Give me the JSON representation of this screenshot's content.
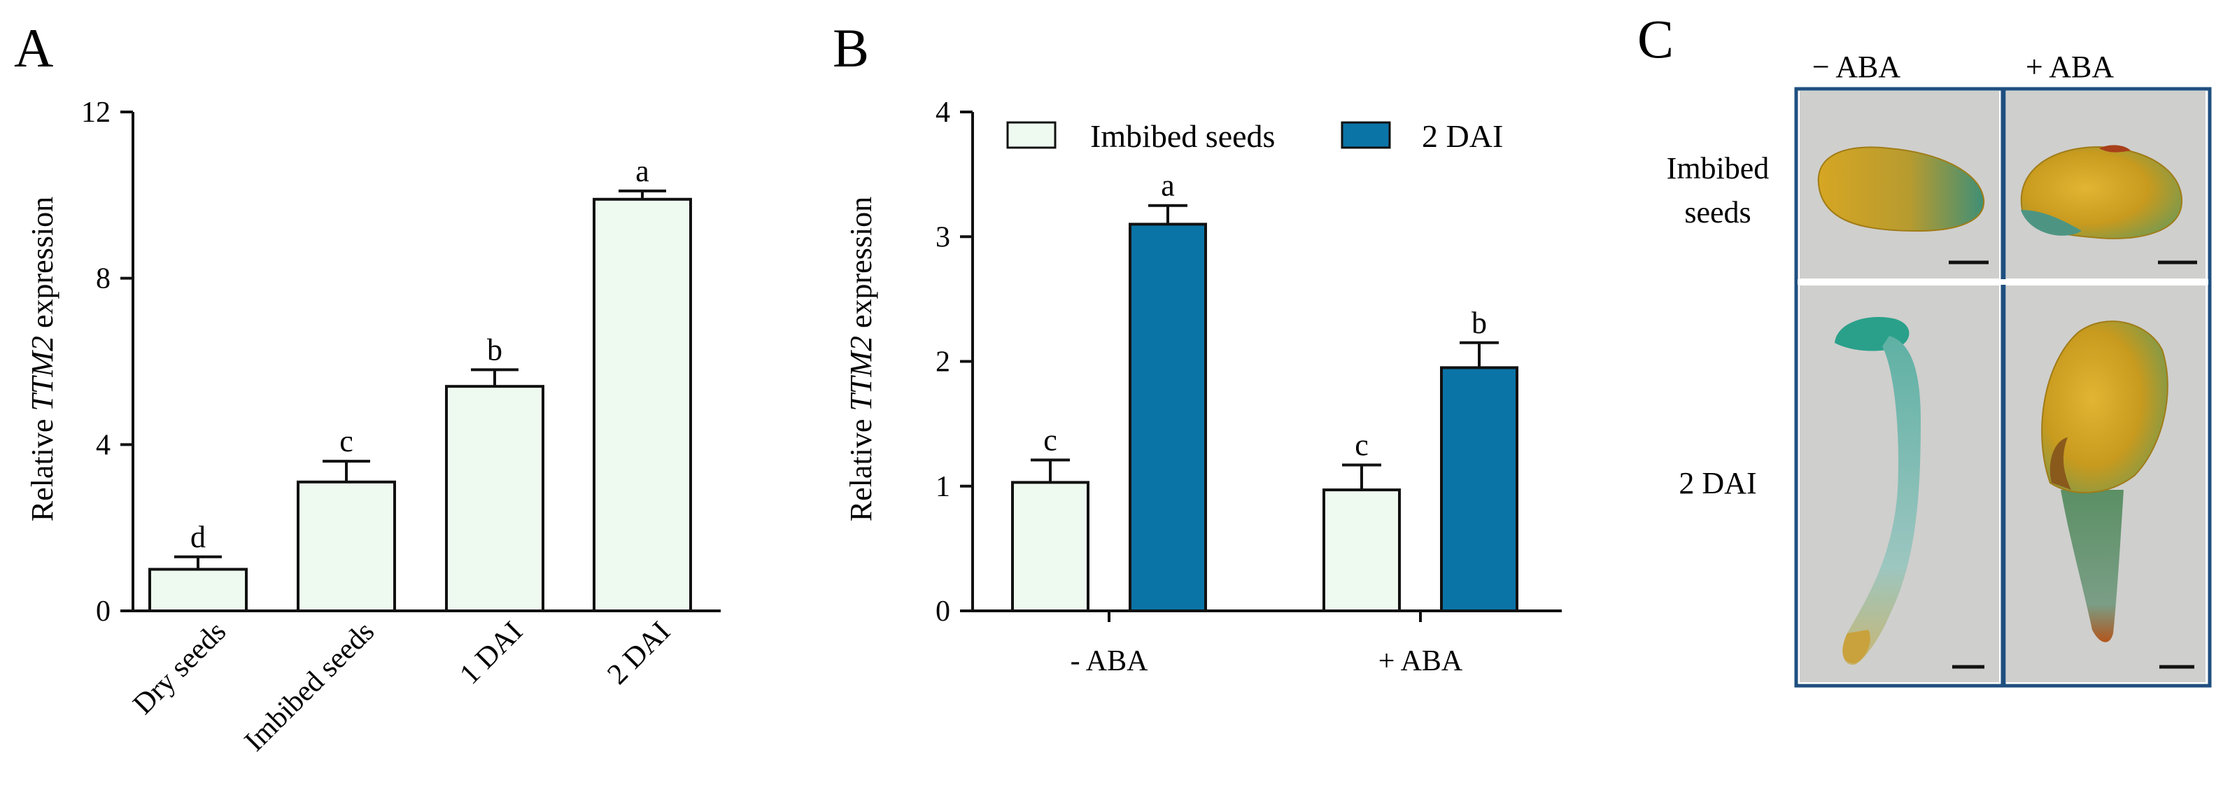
{
  "colors": {
    "light_bar": "#eefaf0",
    "dark_bar": "#0b74a6",
    "photo_border": "#1f4f7f",
    "photo_bg": "#cfcfcd",
    "seed_yellow": "#d8a524",
    "blue_stain": "#3fa393"
  },
  "chart_data": [
    {
      "panel": "A",
      "type": "bar",
      "categories": [
        "Dry seeds",
        "Imbibed seeds",
        "1 DAI",
        "2 DAI"
      ],
      "values": [
        1.0,
        3.1,
        5.4,
        9.9
      ],
      "errors": [
        0.3,
        0.5,
        0.4,
        0.2
      ],
      "significance": [
        "d",
        "c",
        "b",
        "a"
      ],
      "ylabel_prefix": "Relative ",
      "ylabel_gene": "TTM2",
      "ylabel_suffix": " expression",
      "yticks": [
        "0",
        "4",
        "8",
        "12"
      ],
      "ylim": [
        0,
        12
      ],
      "xlabel": ""
    },
    {
      "panel": "B",
      "type": "bar",
      "groups": [
        "- ABA",
        "+ ABA"
      ],
      "series": [
        {
          "name": "Imbibed seeds",
          "values": [
            1.03,
            0.97
          ],
          "errors": [
            0.18,
            0.2
          ],
          "significance": [
            "c",
            "c"
          ]
        },
        {
          "name": "2 DAI",
          "values": [
            3.1,
            1.95
          ],
          "errors": [
            0.15,
            0.2
          ],
          "significance": [
            "a",
            "b"
          ]
        }
      ],
      "ylabel_prefix": "Relative ",
      "ylabel_gene": "TTM2",
      "ylabel_suffix": " expression",
      "yticks": [
        "0",
        "1",
        "2",
        "3",
        "4"
      ],
      "ylim": [
        0,
        4
      ],
      "legend_position": "top"
    }
  ],
  "panel_c": {
    "letter": "C",
    "columns": [
      "− ABA",
      "+ ABA"
    ],
    "rows": [
      "Imbibed\nseeds",
      "2 DAI"
    ],
    "row_line1": "Imbibed",
    "row_line2": "seeds",
    "row2": "2 DAI"
  }
}
